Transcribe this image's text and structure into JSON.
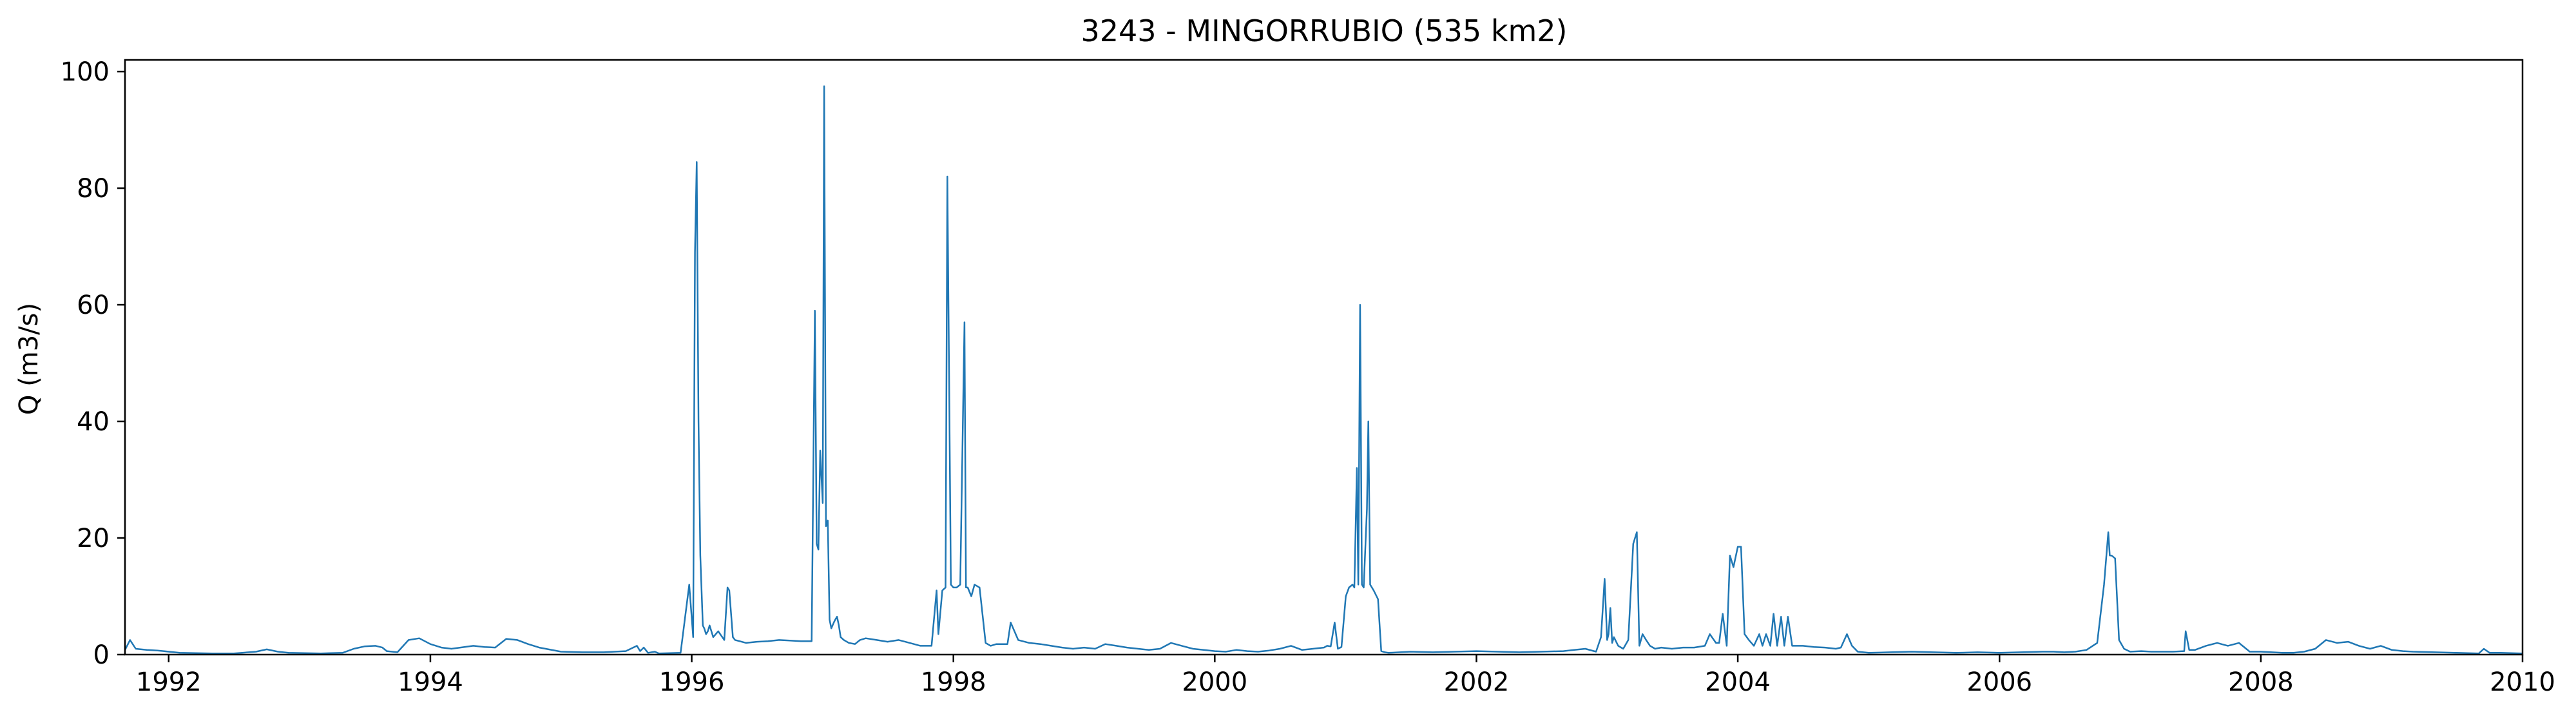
{
  "chart_data": {
    "type": "line",
    "title": "3243 - MINGORRUBIO (535 km2)",
    "xlabel": "",
    "ylabel": "Q (m3/s)",
    "xlim": [
      "1991-09-01",
      "2010-01-01"
    ],
    "ylim": [
      0,
      102
    ],
    "xticks": [
      "1992",
      "1994",
      "1996",
      "1998",
      "2000",
      "2002",
      "2004",
      "2006",
      "2008",
      "2010"
    ],
    "yticks": [
      "0",
      "20",
      "40",
      "60",
      "80",
      "100"
    ],
    "grid": false,
    "legend": "none",
    "series": [
      {
        "color": "#1f77b4",
        "x": [
          "1991-09-01",
          "1991-09-15",
          "1991-10-01",
          "1991-11-01",
          "1991-12-01",
          "1992-02-01",
          "1992-05-01",
          "1992-07-01",
          "1992-09-01",
          "1992-10-01",
          "1992-11-01",
          "1992-12-01",
          "1993-03-01",
          "1993-05-01",
          "1993-06-01",
          "1993-07-01",
          "1993-08-01",
          "1993-08-20",
          "1993-09-01",
          "1993-10-01",
          "1993-11-01",
          "1993-12-01",
          "1994-01-01",
          "1994-02-01",
          "1994-03-01",
          "1994-05-01",
          "1994-06-01",
          "1994-07-01",
          "1994-08-01",
          "1994-09-01",
          "1994-10-01",
          "1994-11-01",
          "1995-01-01",
          "1995-03-01",
          "1995-05-01",
          "1995-07-01",
          "1995-08-01",
          "1995-08-10",
          "1995-08-20",
          "1995-09-01",
          "1995-09-20",
          "1995-10-01",
          "1995-12-01",
          "1995-12-25",
          "1996-01-05",
          "1996-01-10",
          "1996-01-15",
          "1996-01-20",
          "1996-01-25",
          "1996-02-01",
          "1996-02-05",
          "1996-02-10",
          "1996-02-15",
          "1996-02-20",
          "1996-03-01",
          "1996-03-15",
          "1996-04-01",
          "1996-04-10",
          "1996-04-15",
          "1996-04-25",
          "1996-05-01",
          "1996-06-01",
          "1996-07-01",
          "1996-08-01",
          "1996-09-01",
          "1996-10-01",
          "1996-11-01",
          "1996-12-01",
          "1996-12-10",
          "1996-12-15",
          "1996-12-20",
          "1996-12-25",
          "1997-01-01",
          "1997-01-05",
          "1997-01-10",
          "1997-01-15",
          "1997-01-20",
          "1997-01-25",
          "1997-02-01",
          "1997-02-05",
          "1997-02-10",
          "1997-02-15",
          "1997-02-20",
          "1997-03-01",
          "1997-03-15",
          "1997-04-01",
          "1997-04-15",
          "1997-05-01",
          "1997-06-01",
          "1997-07-01",
          "1997-08-01",
          "1997-09-01",
          "1997-10-01",
          "1997-11-01",
          "1997-11-15",
          "1997-11-20",
          "1997-12-01",
          "1997-12-10",
          "1997-12-15",
          "1997-12-20",
          "1997-12-25",
          "1998-01-01",
          "1998-01-10",
          "1998-01-20",
          "1998-02-01",
          "1998-02-05",
          "1998-02-10",
          "1998-02-20",
          "1998-03-01",
          "1998-03-15",
          "1998-04-01",
          "1998-04-15",
          "1998-05-01",
          "1998-06-01",
          "1998-06-10",
          "1998-07-01",
          "1998-08-01",
          "1998-09-01",
          "1998-10-01",
          "1998-11-01",
          "1998-12-01",
          "1999-01-01",
          "1999-02-01",
          "1999-03-01",
          "1999-04-01",
          "1999-05-01",
          "1999-06-01",
          "1999-07-01",
          "1999-08-01",
          "1999-09-01",
          "1999-10-01",
          "1999-11-01",
          "1999-12-01",
          "2000-01-01",
          "2000-02-01",
          "2000-03-01",
          "2000-04-01",
          "2000-05-01",
          "2000-06-01",
          "2000-07-01",
          "2000-08-01",
          "2000-09-01",
          "2000-10-01",
          "2000-11-01",
          "2000-11-10",
          "2000-11-20",
          "2000-12-01",
          "2000-12-10",
          "2000-12-20",
          "2001-01-01",
          "2001-01-10",
          "2001-01-20",
          "2001-01-25",
          "2001-02-01",
          "2001-02-05",
          "2001-02-10",
          "2001-02-15",
          "2001-02-20",
          "2001-03-01",
          "2001-03-05",
          "2001-03-10",
          "2001-03-15",
          "2001-03-20",
          "2001-04-01",
          "2001-04-10",
          "2001-04-20",
          "2001-05-01",
          "2001-06-01",
          "2001-07-01",
          "2001-09-01",
          "2001-11-01",
          "2002-01-01",
          "2002-03-01",
          "2002-05-01",
          "2002-07-01",
          "2002-09-01",
          "2002-10-01",
          "2002-11-01",
          "2002-12-01",
          "2002-12-15",
          "2002-12-25",
          "2003-01-01",
          "2003-01-05",
          "2003-01-10",
          "2003-01-15",
          "2003-01-20",
          "2003-02-01",
          "2003-02-15",
          "2003-03-01",
          "2003-03-15",
          "2003-03-25",
          "2003-04-01",
          "2003-04-10",
          "2003-04-20",
          "2003-05-01",
          "2003-05-15",
          "2003-06-01",
          "2003-07-01",
          "2003-08-01",
          "2003-09-01",
          "2003-10-01",
          "2003-10-15",
          "2003-11-01",
          "2003-11-10",
          "2003-11-20",
          "2003-12-01",
          "2003-12-10",
          "2003-12-20",
          "2004-01-01",
          "2004-01-10",
          "2004-01-20",
          "2004-02-01",
          "2004-02-15",
          "2004-03-01",
          "2004-03-10",
          "2004-03-20",
          "2004-04-01",
          "2004-04-10",
          "2004-04-20",
          "2004-05-01",
          "2004-05-10",
          "2004-05-20",
          "2004-06-01",
          "2004-07-01",
          "2004-08-01",
          "2004-09-01",
          "2004-10-01",
          "2004-10-15",
          "2004-11-01",
          "2004-11-15",
          "2004-12-01",
          "2005-01-01",
          "2005-03-01",
          "2005-05-01",
          "2005-07-01",
          "2005-09-01",
          "2005-11-01",
          "2006-01-01",
          "2006-03-01",
          "2006-05-01",
          "2006-06-01",
          "2006-07-01",
          "2006-08-01",
          "2006-09-01",
          "2006-10-01",
          "2006-10-20",
          "2006-11-01",
          "2006-11-05",
          "2006-11-10",
          "2006-11-20",
          "2006-12-01",
          "2006-12-15",
          "2007-01-01",
          "2007-02-01",
          "2007-03-01",
          "2007-04-01",
          "2007-05-01",
          "2007-06-01",
          "2007-06-05",
          "2007-06-15",
          "2007-07-01",
          "2007-08-01",
          "2007-09-01",
          "2007-10-01",
          "2007-11-01",
          "2007-12-01",
          "2008-01-01",
          "2008-02-01",
          "2008-03-01",
          "2008-04-01",
          "2008-05-01",
          "2008-06-01",
          "2008-07-01",
          "2008-08-01",
          "2008-09-01",
          "2008-10-01",
          "2008-11-01",
          "2008-12-01",
          "2009-01-01",
          "2009-02-01",
          "2009-03-01",
          "2009-05-01",
          "2009-07-01",
          "2009-09-01",
          "2009-09-15",
          "2009-10-01",
          "2009-11-01",
          "2009-12-31"
        ],
        "y": [
          0.8,
          2.5,
          1.0,
          0.8,
          0.7,
          0.3,
          0.2,
          0.2,
          0.5,
          0.9,
          0.5,
          0.3,
          0.2,
          0.3,
          1.0,
          1.4,
          1.5,
          1.2,
          0.6,
          0.4,
          2.5,
          2.8,
          1.8,
          1.2,
          1.0,
          1.5,
          1.3,
          1.2,
          2.7,
          2.5,
          1.8,
          1.2,
          0.5,
          0.4,
          0.4,
          0.6,
          1.5,
          0.6,
          1.2,
          0.3,
          0.5,
          0.2,
          0.3,
          12.0,
          3.0,
          69.0,
          84.5,
          40.0,
          17.0,
          5.0,
          4.5,
          3.5,
          4.0,
          5.0,
          3.0,
          4.0,
          2.5,
          11.5,
          11.0,
          3.0,
          2.5,
          2.0,
          2.2,
          2.3,
          2.5,
          2.4,
          2.3,
          2.3,
          59.0,
          19.0,
          18.0,
          35.0,
          26.0,
          97.5,
          22.0,
          23.0,
          6.0,
          4.5,
          5.5,
          6.0,
          6.5,
          5.0,
          3.0,
          2.5,
          2.0,
          1.8,
          2.5,
          2.8,
          2.5,
          2.2,
          2.5,
          2.0,
          1.5,
          1.5,
          11.0,
          3.5,
          11.0,
          11.5,
          82.0,
          48.0,
          12.0,
          11.5,
          11.5,
          12.0,
          57.0,
          11.5,
          11.5,
          10.0,
          12.0,
          11.5,
          2.0,
          1.5,
          1.8,
          1.8,
          5.5,
          2.5,
          2.0,
          1.8,
          1.5,
          1.2,
          1.0,
          1.2,
          1.0,
          1.8,
          1.5,
          1.2,
          1.0,
          0.8,
          1.0,
          2.0,
          1.5,
          1.0,
          0.8,
          0.6,
          0.5,
          0.8,
          0.6,
          0.5,
          0.7,
          1.0,
          1.5,
          0.8,
          1.0,
          1.2,
          1.5,
          1.4,
          5.5,
          1.0,
          1.3,
          10.0,
          11.5,
          12.0,
          11.5,
          32.0,
          12.0,
          60.0,
          12.0,
          11.5,
          25.0,
          40.0,
          12.0,
          11.5,
          11.0,
          9.5,
          0.6,
          0.4,
          0.3,
          0.4,
          0.5,
          0.4,
          0.5,
          0.6,
          0.5,
          0.4,
          0.5,
          0.6,
          0.8,
          1.0,
          0.5,
          3.0,
          13.0,
          2.5,
          3.5,
          8.0,
          2.0,
          3.0,
          1.5,
          1.0,
          2.5,
          19.0,
          21.0,
          1.5,
          3.5,
          2.5,
          1.5,
          1.0,
          1.2,
          1.0,
          1.2,
          1.2,
          1.5,
          3.5,
          2.0,
          2.0,
          7.0,
          1.5,
          17.0,
          15.0,
          18.5,
          18.5,
          3.5,
          2.5,
          1.5,
          3.5,
          1.5,
          3.5,
          1.5,
          7.0,
          1.5,
          6.5,
          1.5,
          6.5,
          1.5,
          1.5,
          1.3,
          1.2,
          1.0,
          1.2,
          3.5,
          1.5,
          0.5,
          0.3,
          0.4,
          0.5,
          0.4,
          0.3,
          0.4,
          0.3,
          0.4,
          0.5,
          0.5,
          0.4,
          0.5,
          0.8,
          2.0,
          12.0,
          21.0,
          17.0,
          17.0,
          16.5,
          2.5,
          1.0,
          0.5,
          0.6,
          0.5,
          0.5,
          0.5,
          0.6,
          4.0,
          0.8,
          0.8,
          1.5,
          2.0,
          1.5,
          2.0,
          0.5,
          0.5,
          0.4,
          0.3,
          0.3,
          0.5,
          1.0,
          2.5,
          2.0,
          2.2,
          1.5,
          1.0,
          1.5,
          0.8,
          0.6,
          0.5,
          0.4,
          0.3,
          0.2,
          1.0,
          0.3,
          0.3,
          0.2
        ]
      }
    ]
  }
}
